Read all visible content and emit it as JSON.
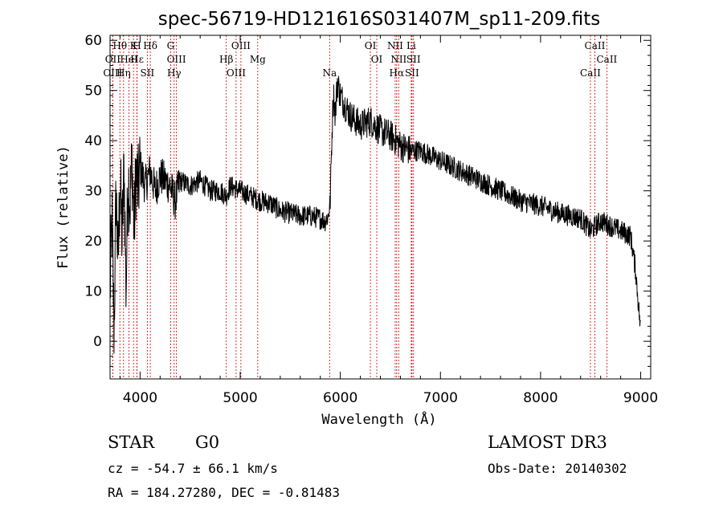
{
  "chart_data": {
    "type": "line",
    "title": "spec-56719-HD121616S031407M_sp11-209.fits",
    "xlabel": "Wavelength (Å)",
    "ylabel": "Flux (relative)",
    "xlim": [
      3700,
      9100
    ],
    "ylim": [
      -7.5,
      61
    ],
    "xticks": [
      4000,
      5000,
      6000,
      7000,
      8000,
      9000
    ],
    "xtick_labels": [
      "4000",
      "5000",
      "6000",
      "7000",
      "8000",
      "9000"
    ],
    "yticks": [
      0,
      10,
      20,
      30,
      40,
      50,
      60
    ],
    "ytick_labels": [
      "0",
      "10",
      "20",
      "30",
      "40",
      "50",
      "60"
    ],
    "series": [
      {
        "name": "flux",
        "x": [
          3700,
          3720,
          3740,
          3760,
          3780,
          3800,
          3820,
          3840,
          3860,
          3880,
          3900,
          3920,
          3940,
          3960,
          3980,
          4000,
          4050,
          4100,
          4150,
          4200,
          4250,
          4300,
          4350,
          4400,
          4500,
          4600,
          4700,
          4800,
          4860,
          4900,
          5000,
          5100,
          5200,
          5300,
          5400,
          5500,
          5600,
          5700,
          5800,
          5850,
          5880,
          5900,
          5910,
          5930,
          5950,
          5970,
          6000,
          6050,
          6100,
          6200,
          6300,
          6400,
          6500,
          6560,
          6600,
          6700,
          6800,
          6900,
          7000,
          7200,
          7400,
          7600,
          7800,
          8000,
          8200,
          8400,
          8500,
          8600,
          8700,
          8800,
          8900,
          8950,
          9000
        ],
        "y": [
          10,
          24,
          2,
          30,
          15,
          33,
          20,
          35,
          10,
          33,
          28,
          36,
          22,
          34,
          30,
          35,
          31,
          34,
          30,
          33,
          32,
          31,
          28,
          32,
          31,
          32,
          30,
          30,
          29,
          31,
          30,
          29,
          28,
          27.5,
          26,
          25.5,
          25,
          25,
          24.5,
          24,
          25,
          28,
          37,
          50,
          45,
          52,
          49,
          47,
          45,
          43,
          44,
          42,
          41,
          40,
          39,
          38,
          38,
          37,
          36,
          34,
          32,
          30,
          28,
          27,
          25.5,
          24.5,
          22,
          24,
          23,
          22,
          21,
          14,
          2
        ]
      }
    ],
    "line_markers": [
      {
        "label": "Hθ",
        "wave": 3798
      },
      {
        "label": "OII",
        "wave": 3727
      },
      {
        "label": "OIII",
        "wave": 3727
      },
      {
        "label": "K",
        "wave": 3934
      },
      {
        "label": "Hε",
        "wave": 3970
      },
      {
        "label": "Hη",
        "wave": 3835
      },
      {
        "label": "H",
        "wave": 3969
      },
      {
        "label": "HeI",
        "wave": 3889
      },
      {
        "label": "SII",
        "wave": 4072
      },
      {
        "label": "Hδ",
        "wave": 4102
      },
      {
        "label": "OIII",
        "wave": 4363
      },
      {
        "label": "Hγ",
        "wave": 4340
      },
      {
        "label": "G",
        "wave": 4305
      },
      {
        "label": "Hβ",
        "wave": 4861
      },
      {
        "label": "OIII",
        "wave": 4959
      },
      {
        "label": "OIII",
        "wave": 5007
      },
      {
        "label": "Mg",
        "wave": 5175
      },
      {
        "label": "Na",
        "wave": 5893
      },
      {
        "label": "OI",
        "wave": 6300
      },
      {
        "label": "OI",
        "wave": 6364
      },
      {
        "label": "Hα",
        "wave": 6563
      },
      {
        "label": "NII",
        "wave": 6548
      },
      {
        "label": "NII",
        "wave": 6583
      },
      {
        "label": "SII",
        "wave": 6716
      },
      {
        "label": "Li",
        "wave": 6708
      },
      {
        "label": "SII",
        "wave": 6731
      },
      {
        "label": "CaII",
        "wave": 8498
      },
      {
        "label": "CaII",
        "wave": 8542
      },
      {
        "label": "CaII",
        "wave": 8662
      }
    ],
    "grid": false,
    "line_color": "#000000",
    "marker_color": "#cc0000"
  },
  "info": {
    "object_class": "STAR",
    "subclass": "G0",
    "survey": "LAMOST DR3",
    "cz": "cz = -54.7 ± 66.1 km/s",
    "obs_date": "Obs-Date: 20140302",
    "coords": "RA = 184.27280, DEC =  -0.81483"
  }
}
